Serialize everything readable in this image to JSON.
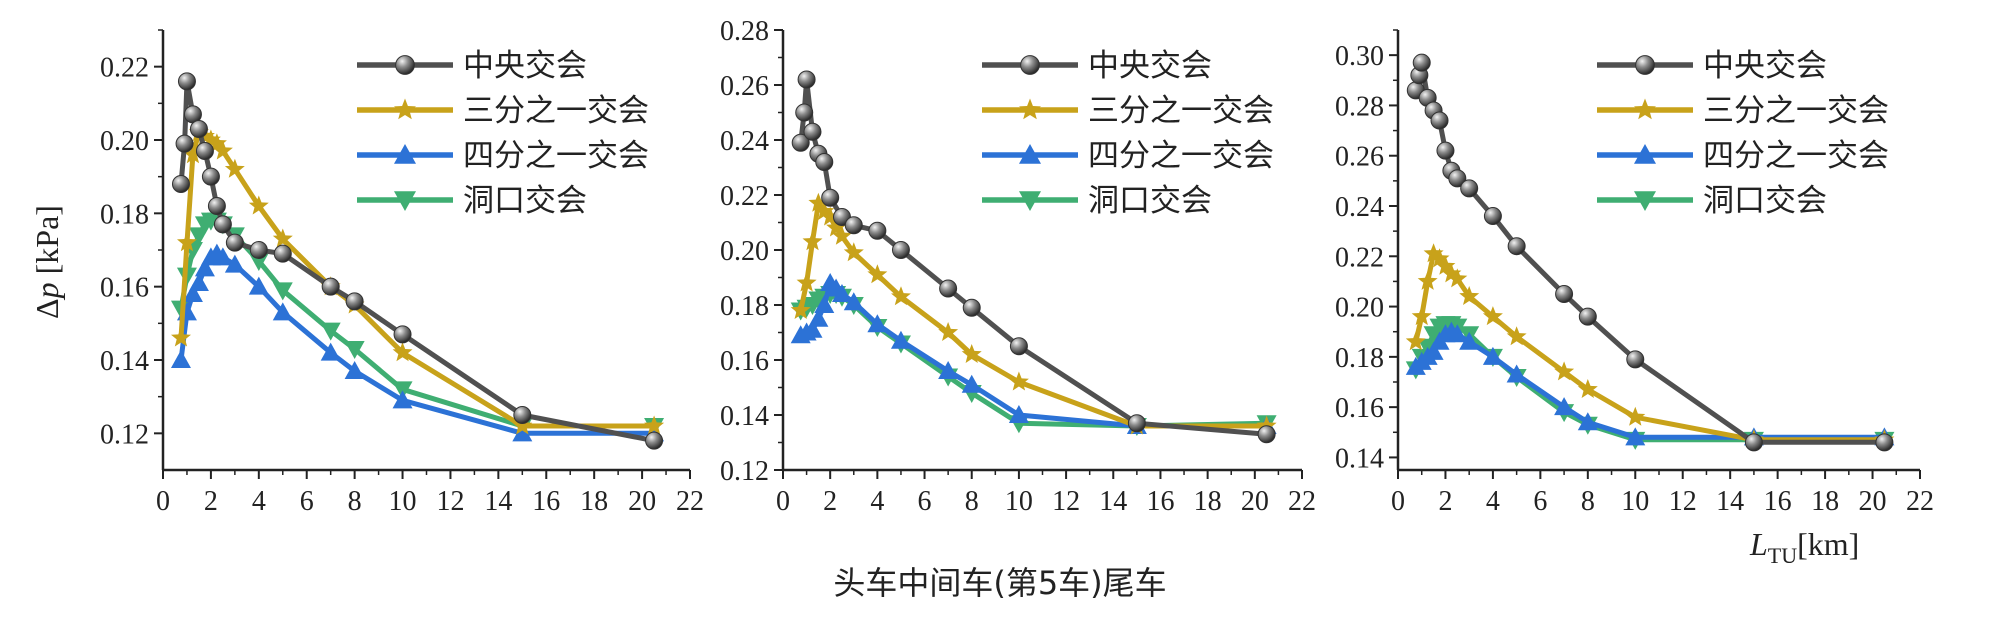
{
  "caption": "头车中间车(第5车)尾车",
  "y_axis_label": {
    "main": "Δ",
    "var": "p",
    "unit": " [kPa]"
  },
  "x_axis_label": {
    "var": "L",
    "sub": "TU",
    "unit": "[km]"
  },
  "series_styles": [
    {
      "name": "中央交会",
      "color": "#505050",
      "marker": "sphere"
    },
    {
      "name": "三分之一交会",
      "color": "#c8a21a",
      "marker": "star"
    },
    {
      "name": "四分之一交会",
      "color": "#2c72d6",
      "marker": "triangle-up"
    },
    {
      "name": "洞口交会",
      "color": "#3fae72",
      "marker": "triangle-down"
    }
  ],
  "chart_data": [
    {
      "type": "line",
      "panel": "头车",
      "xlabel": "",
      "ylabel": "Δp [kPa]",
      "xlim": [
        0,
        22
      ],
      "ylim": [
        0.11,
        0.23
      ],
      "xticks": [
        "0",
        "2",
        "4",
        "6",
        "8",
        "10",
        "12",
        "14",
        "16",
        "18",
        "20",
        "22"
      ],
      "yticks": [
        "0.12",
        "0.14",
        "0.16",
        "0.18",
        "0.20",
        "0.22"
      ],
      "legend_position": "top-right",
      "series": [
        {
          "name": "中央交会",
          "x": [
            0.75,
            0.9,
            1.0,
            1.25,
            1.5,
            1.75,
            2.0,
            2.25,
            2.5,
            3.0,
            4.0,
            5.0,
            7.0,
            8.0,
            10.0,
            15.0,
            20.5
          ],
          "y": [
            0.188,
            0.199,
            0.216,
            0.207,
            0.203,
            0.197,
            0.19,
            0.182,
            0.177,
            0.172,
            0.17,
            0.169,
            0.16,
            0.156,
            0.147,
            0.125,
            0.118
          ]
        },
        {
          "name": "三分之一交会",
          "x": [
            0.75,
            1.0,
            1.25,
            1.5,
            1.75,
            2.0,
            2.25,
            2.5,
            3.0,
            4.0,
            5.0,
            7.0,
            8.0,
            10.0,
            15.0,
            20.5
          ],
          "y": [
            0.146,
            0.172,
            0.196,
            0.202,
            0.201,
            0.2,
            0.199,
            0.197,
            0.192,
            0.182,
            0.173,
            0.16,
            0.155,
            0.142,
            0.122,
            0.122
          ]
        },
        {
          "name": "四分之一交会",
          "x": [
            0.75,
            1.0,
            1.25,
            1.5,
            1.75,
            2.0,
            2.25,
            2.5,
            3.0,
            4.0,
            5.0,
            7.0,
            8.0,
            10.0,
            15.0,
            20.5
          ],
          "y": [
            0.14,
            0.153,
            0.158,
            0.161,
            0.165,
            0.168,
            0.169,
            0.168,
            0.166,
            0.16,
            0.153,
            0.142,
            0.137,
            0.129,
            0.12,
            0.12
          ]
        },
        {
          "name": "洞口交会",
          "x": [
            0.75,
            1.0,
            1.25,
            1.5,
            1.75,
            2.0,
            2.25,
            2.5,
            3.0,
            4.0,
            5.0,
            7.0,
            8.0,
            10.0,
            15.0,
            20.5
          ],
          "y": [
            0.154,
            0.163,
            0.17,
            0.174,
            0.177,
            0.178,
            0.178,
            0.177,
            0.174,
            0.167,
            0.159,
            0.148,
            0.143,
            0.132,
            0.122,
            0.122
          ]
        }
      ]
    },
    {
      "type": "line",
      "panel": "中间车(第5车)",
      "xlabel": "",
      "ylabel": "",
      "xlim": [
        0,
        22
      ],
      "ylim": [
        0.12,
        0.28
      ],
      "xticks": [
        "0",
        "2",
        "4",
        "6",
        "8",
        "10",
        "12",
        "14",
        "16",
        "18",
        "20",
        "22"
      ],
      "yticks": [
        "0.12",
        "0.14",
        "0.16",
        "0.18",
        "0.20",
        "0.22",
        "0.24",
        "0.26",
        "0.28"
      ],
      "legend_position": "top-right",
      "series": [
        {
          "name": "中央交会",
          "x": [
            0.75,
            0.9,
            1.0,
            1.25,
            1.5,
            1.75,
            2.0,
            2.5,
            3.0,
            4.0,
            5.0,
            7.0,
            8.0,
            10.0,
            15.0,
            20.5
          ],
          "y": [
            0.239,
            0.25,
            0.262,
            0.243,
            0.235,
            0.232,
            0.219,
            0.212,
            0.209,
            0.207,
            0.2,
            0.186,
            0.179,
            0.165,
            0.137,
            0.133
          ]
        },
        {
          "name": "三分之一交会",
          "x": [
            0.75,
            1.0,
            1.25,
            1.5,
            1.75,
            2.0,
            2.25,
            2.5,
            3.0,
            4.0,
            5.0,
            7.0,
            8.0,
            10.0,
            15.0,
            20.5
          ],
          "y": [
            0.178,
            0.188,
            0.203,
            0.217,
            0.214,
            0.212,
            0.208,
            0.205,
            0.199,
            0.191,
            0.183,
            0.17,
            0.162,
            0.152,
            0.136,
            0.136
          ]
        },
        {
          "name": "四分之一交会",
          "x": [
            0.75,
            1.0,
            1.25,
            1.5,
            1.75,
            2.0,
            2.25,
            2.5,
            3.0,
            4.0,
            5.0,
            7.0,
            8.0,
            10.0,
            15.0,
            20.5
          ],
          "y": [
            0.169,
            0.17,
            0.171,
            0.175,
            0.18,
            0.188,
            0.186,
            0.184,
            0.181,
            0.173,
            0.167,
            0.156,
            0.151,
            0.14,
            0.136,
            0.136
          ]
        },
        {
          "name": "洞口交会",
          "x": [
            0.75,
            1.0,
            1.25,
            1.5,
            1.75,
            2.0,
            2.25,
            2.5,
            3.0,
            4.0,
            5.0,
            7.0,
            8.0,
            10.0,
            15.0,
            20.5
          ],
          "y": [
            0.178,
            0.179,
            0.18,
            0.182,
            0.183,
            0.184,
            0.184,
            0.183,
            0.18,
            0.172,
            0.166,
            0.154,
            0.148,
            0.137,
            0.136,
            0.137
          ]
        }
      ]
    },
    {
      "type": "line",
      "panel": "尾车",
      "xlabel": "LTU[km]",
      "ylabel": "",
      "xlim": [
        0,
        22
      ],
      "ylim": [
        0.135,
        0.31
      ],
      "xticks": [
        "0",
        "2",
        "4",
        "6",
        "8",
        "10",
        "12",
        "14",
        "16",
        "18",
        "20",
        "22"
      ],
      "yticks": [
        "0.14",
        "0.16",
        "0.18",
        "0.20",
        "0.22",
        "0.24",
        "0.26",
        "0.28",
        "0.30"
      ],
      "legend_position": "top-right",
      "series": [
        {
          "name": "中央交会",
          "x": [
            0.75,
            0.9,
            1.0,
            1.25,
            1.5,
            1.75,
            2.0,
            2.25,
            2.5,
            3.0,
            4.0,
            5.0,
            7.0,
            8.0,
            10.0,
            15.0,
            20.5
          ],
          "y": [
            0.286,
            0.292,
            0.297,
            0.283,
            0.278,
            0.274,
            0.262,
            0.254,
            0.251,
            0.247,
            0.236,
            0.224,
            0.205,
            0.196,
            0.179,
            0.146,
            0.146
          ]
        },
        {
          "name": "三分之一交会",
          "x": [
            0.75,
            1.0,
            1.25,
            1.5,
            1.75,
            2.0,
            2.25,
            2.5,
            3.0,
            4.0,
            5.0,
            7.0,
            8.0,
            10.0,
            15.0,
            20.5
          ],
          "y": [
            0.186,
            0.196,
            0.21,
            0.221,
            0.219,
            0.216,
            0.213,
            0.211,
            0.204,
            0.196,
            0.188,
            0.174,
            0.167,
            0.156,
            0.147,
            0.147
          ]
        },
        {
          "name": "四分之一交会",
          "x": [
            0.75,
            1.0,
            1.25,
            1.5,
            1.75,
            2.0,
            2.25,
            2.5,
            3.0,
            4.0,
            5.0,
            7.0,
            8.0,
            10.0,
            15.0,
            20.5
          ],
          "y": [
            0.176,
            0.178,
            0.18,
            0.182,
            0.186,
            0.189,
            0.19,
            0.189,
            0.186,
            0.18,
            0.173,
            0.16,
            0.154,
            0.148,
            0.148,
            0.148
          ]
        },
        {
          "name": "洞口交会",
          "x": [
            0.75,
            1.0,
            1.25,
            1.5,
            1.75,
            2.0,
            2.25,
            2.5,
            3.0,
            4.0,
            5.0,
            7.0,
            8.0,
            10.0,
            15.0,
            20.5
          ],
          "y": [
            0.175,
            0.18,
            0.184,
            0.189,
            0.192,
            0.193,
            0.193,
            0.192,
            0.189,
            0.18,
            0.172,
            0.158,
            0.153,
            0.147,
            0.147,
            0.147
          ]
        }
      ]
    }
  ]
}
